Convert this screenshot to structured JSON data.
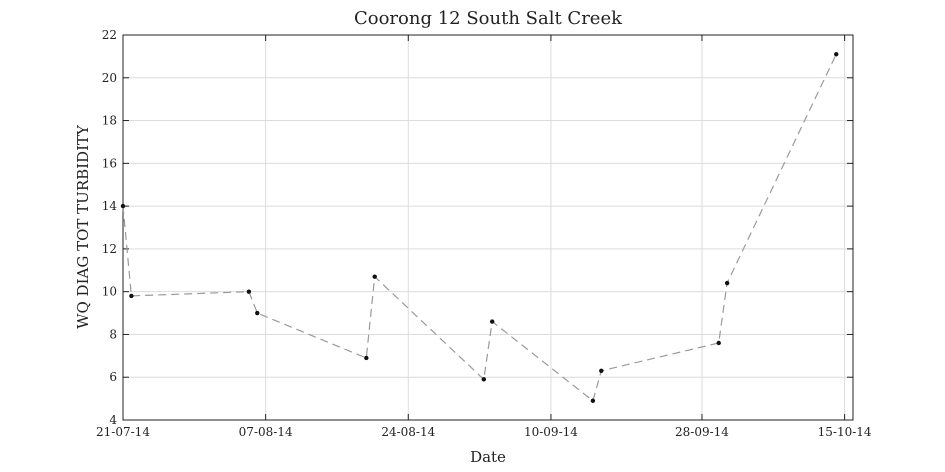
{
  "chart_data": {
    "type": "line",
    "title": "Coorong 12 South Salt Creek",
    "xlabel": "Date",
    "ylabel": "WQ DIAG TOT TURBIDITY",
    "xlim": [
      "2014-07-21",
      "2014-10-16"
    ],
    "ylim": [
      4,
      22
    ],
    "yticks": [
      4,
      6,
      8,
      10,
      12,
      14,
      16,
      18,
      20,
      22
    ],
    "xticks": [
      {
        "date": "2014-07-21",
        "label": "21-07-14"
      },
      {
        "date": "2014-08-07",
        "label": "07-08-14"
      },
      {
        "date": "2014-08-24",
        "label": "24-08-14"
      },
      {
        "date": "2014-09-10",
        "label": "10-09-14"
      },
      {
        "date": "2014-09-28",
        "label": "28-09-14"
      },
      {
        "date": "2014-10-15",
        "label": "15-10-14"
      }
    ],
    "grid": true,
    "series": [
      {
        "color": "#9a9a9a",
        "marker_color": "#111111",
        "line_style": "dashed",
        "points": [
          {
            "x": "2014-07-21",
            "y": 14.0
          },
          {
            "x": "2014-07-22",
            "y": 9.8
          },
          {
            "x": "2014-08-05",
            "y": 10.0
          },
          {
            "x": "2014-08-06",
            "y": 9.0
          },
          {
            "x": "2014-08-19",
            "y": 6.9
          },
          {
            "x": "2014-08-20",
            "y": 10.7
          },
          {
            "x": "2014-09-02",
            "y": 5.9
          },
          {
            "x": "2014-09-03",
            "y": 8.6
          },
          {
            "x": "2014-09-15",
            "y": 4.9
          },
          {
            "x": "2014-09-16",
            "y": 6.3
          },
          {
            "x": "2014-09-30",
            "y": 7.6
          },
          {
            "x": "2014-10-01",
            "y": 10.4
          },
          {
            "x": "2014-10-14",
            "y": 21.1
          }
        ]
      }
    ]
  }
}
